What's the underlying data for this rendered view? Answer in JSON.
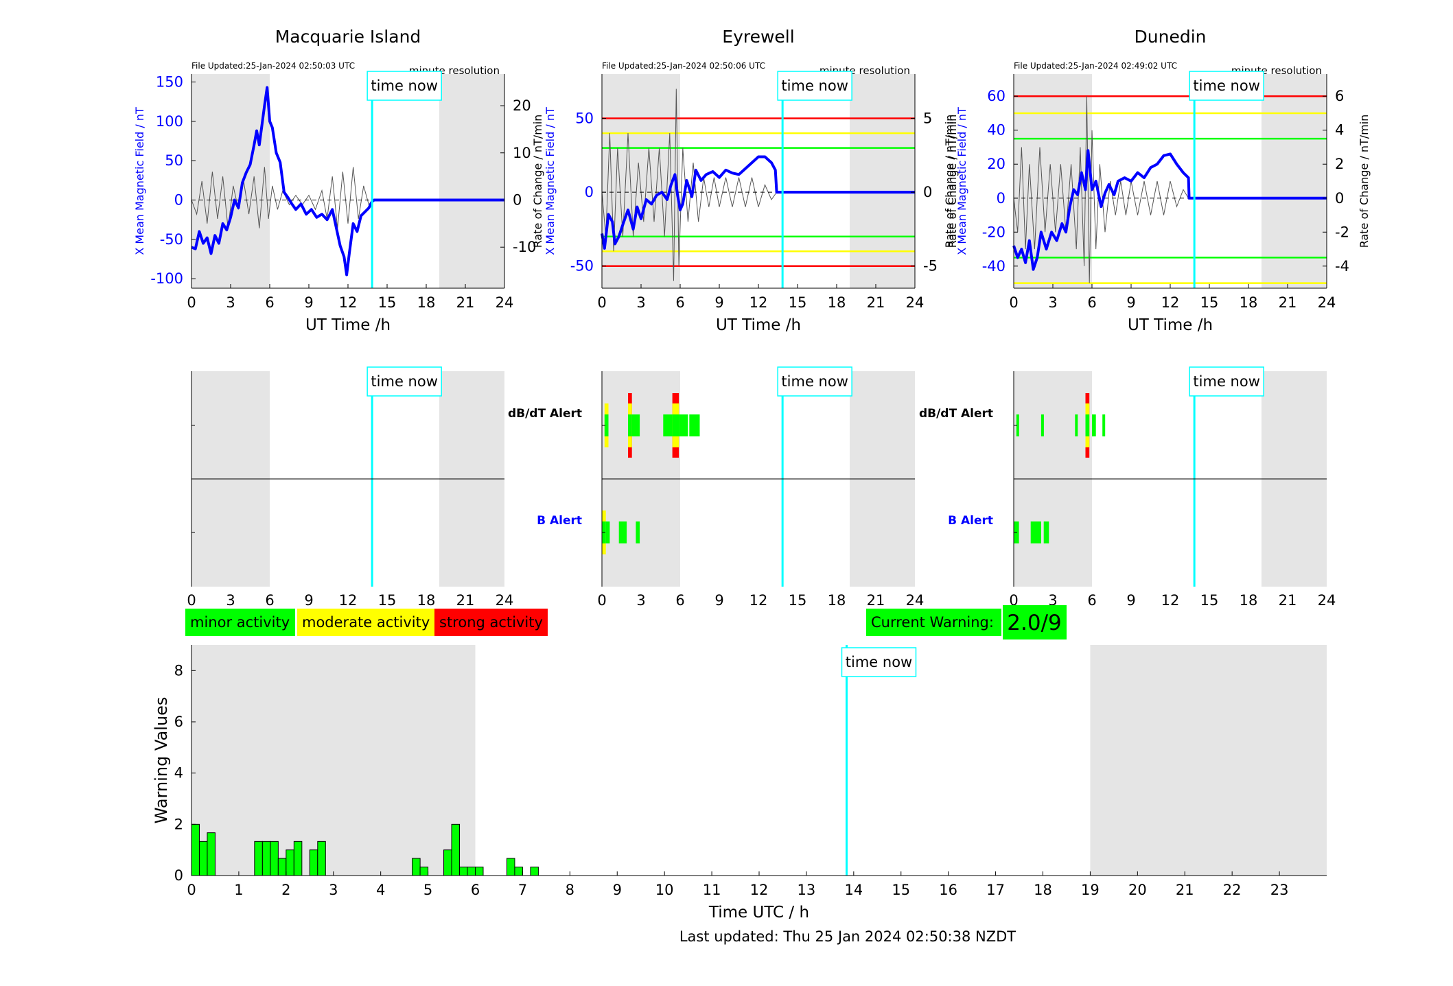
{
  "figure": {
    "last_updated": "Last updated: Thu 25 Jan 2024 02:50:38 NZDT",
    "time_now_label": "time now",
    "current_warning_label": "Current Warning:",
    "current_warning_value": "2.0/9",
    "legend": [
      {
        "label": "minor activity",
        "color": "#00ff00"
      },
      {
        "label": "moderate activity",
        "color": "#ffff00"
      },
      {
        "label": "strong activity",
        "color": "#ff0000"
      }
    ],
    "colors": {
      "x_series": "#0000ff",
      "rate_series": "#555555",
      "time_now": "#00ffff",
      "night_shade": "#e5e5e5",
      "minor": "#00ff00",
      "moderate": "#ffff00",
      "strong": "#ff0000"
    }
  },
  "chart_data": [
    {
      "type": "line",
      "name": "Macquarie Island",
      "title": "Macquarie Island",
      "file_updated": "File Updated:25-Jan-2024 02:50:03 UTC",
      "resolution": "minute resolution",
      "xlabel": "UT Time /h",
      "ylabel": "X Mean Magnetic Field / nT",
      "y2label": "",
      "xlim": [
        0,
        24
      ],
      "ylim": [
        -112,
        160
      ],
      "y2lim": [
        -18.7,
        26.7
      ],
      "xticks": [
        0,
        3,
        6,
        9,
        12,
        15,
        18,
        21,
        24
      ],
      "yticks": [
        -100,
        -50,
        0,
        50,
        100,
        150
      ],
      "y2ticks": [
        -10,
        0,
        10,
        20
      ],
      "night_bands": [
        [
          0,
          6
        ],
        [
          19,
          24
        ]
      ],
      "time_now": 13.85,
      "thresholds": [],
      "x_series": [
        [
          0,
          -60
        ],
        [
          0.3,
          -62
        ],
        [
          0.6,
          -40
        ],
        [
          0.9,
          -55
        ],
        [
          1.2,
          -48
        ],
        [
          1.5,
          -68
        ],
        [
          1.8,
          -45
        ],
        [
          2.1,
          -55
        ],
        [
          2.4,
          -30
        ],
        [
          2.7,
          -38
        ],
        [
          3.0,
          -22
        ],
        [
          3.3,
          0
        ],
        [
          3.6,
          -10
        ],
        [
          3.9,
          22
        ],
        [
          4.2,
          35
        ],
        [
          4.5,
          45
        ],
        [
          4.8,
          70
        ],
        [
          5.0,
          88
        ],
        [
          5.2,
          70
        ],
        [
          5.4,
          95
        ],
        [
          5.6,
          120
        ],
        [
          5.8,
          143
        ],
        [
          6.0,
          100
        ],
        [
          6.2,
          92
        ],
        [
          6.5,
          60
        ],
        [
          6.8,
          48
        ],
        [
          7.1,
          10
        ],
        [
          7.4,
          3
        ],
        [
          7.7,
          -5
        ],
        [
          8.0,
          -12
        ],
        [
          8.4,
          -5
        ],
        [
          8.8,
          -18
        ],
        [
          9.2,
          -12
        ],
        [
          9.6,
          -22
        ],
        [
          10.0,
          -18
        ],
        [
          10.4,
          -25
        ],
        [
          10.8,
          -12
        ],
        [
          11.1,
          -35
        ],
        [
          11.4,
          -58
        ],
        [
          11.7,
          -72
        ],
        [
          11.9,
          -95
        ],
        [
          12.1,
          -68
        ],
        [
          12.4,
          -30
        ],
        [
          12.7,
          -40
        ],
        [
          13.0,
          -20
        ],
        [
          13.3,
          -15
        ],
        [
          13.6,
          -10
        ],
        [
          13.85,
          -2
        ],
        [
          14.0,
          0
        ],
        [
          24,
          0
        ]
      ],
      "rate_series": [
        [
          0,
          0
        ],
        [
          0.4,
          -3
        ],
        [
          0.8,
          4
        ],
        [
          1.2,
          -5
        ],
        [
          1.6,
          6
        ],
        [
          2.0,
          -4
        ],
        [
          2.4,
          5
        ],
        [
          2.8,
          -6
        ],
        [
          3.2,
          3
        ],
        [
          3.6,
          -2
        ],
        [
          4.0,
          4
        ],
        [
          4.4,
          -3
        ],
        [
          4.8,
          5
        ],
        [
          5.2,
          -6
        ],
        [
          5.6,
          7
        ],
        [
          5.9,
          -4
        ],
        [
          6.2,
          3
        ],
        [
          6.6,
          -2
        ],
        [
          7.0,
          2
        ],
        [
          7.5,
          -1
        ],
        [
          8.0,
          1
        ],
        [
          8.5,
          -1
        ],
        [
          9.0,
          1
        ],
        [
          9.5,
          -2
        ],
        [
          10.0,
          2
        ],
        [
          10.4,
          -4
        ],
        [
          10.8,
          5
        ],
        [
          11.2,
          -6
        ],
        [
          11.6,
          6
        ],
        [
          12.0,
          -5
        ],
        [
          12.4,
          7
        ],
        [
          12.8,
          -4
        ],
        [
          13.2,
          3
        ],
        [
          13.6,
          -1
        ],
        [
          13.85,
          0
        ]
      ],
      "alerts": {
        "dbdt": [],
        "b": []
      }
    },
    {
      "type": "line",
      "name": "Eyrewell",
      "title": "Eyrewell",
      "file_updated": "File Updated:25-Jan-2024 02:50:06 UTC",
      "resolution": "minute resolution",
      "xlabel": "UT Time /h",
      "ylabel": "X Mean Magnetic Field / nT",
      "y2label": "Rate of Change / nT/min",
      "xlim": [
        0,
        24
      ],
      "ylim": [
        -65,
        80
      ],
      "y2lim": [
        -6.5,
        8.0
      ],
      "xticks": [
        0,
        3,
        6,
        9,
        12,
        15,
        18,
        21,
        24
      ],
      "yticks": [
        -50,
        0,
        50
      ],
      "y2ticks": [
        -5,
        0,
        5
      ],
      "night_bands": [
        [
          0,
          6
        ],
        [
          19,
          24
        ]
      ],
      "time_now": 13.85,
      "thresholds": [
        [
          50,
          "#ff0000"
        ],
        [
          40,
          "#ffff00"
        ],
        [
          30,
          "#00ff00"
        ],
        [
          -30,
          "#00ff00"
        ],
        [
          -40,
          "#ffff00"
        ],
        [
          -50,
          "#ff0000"
        ]
      ],
      "x_series": [
        [
          0,
          -28
        ],
        [
          0.2,
          -38
        ],
        [
          0.5,
          -15
        ],
        [
          0.8,
          -20
        ],
        [
          1.0,
          -35
        ],
        [
          1.3,
          -30
        ],
        [
          1.6,
          -22
        ],
        [
          2.0,
          -12
        ],
        [
          2.4,
          -25
        ],
        [
          2.7,
          -10
        ],
        [
          3.0,
          -18
        ],
        [
          3.4,
          -5
        ],
        [
          3.8,
          -8
        ],
        [
          4.2,
          -2
        ],
        [
          4.6,
          0
        ],
        [
          5.0,
          -5
        ],
        [
          5.3,
          5
        ],
        [
          5.6,
          12
        ],
        [
          5.8,
          -2
        ],
        [
          6.0,
          -12
        ],
        [
          6.2,
          -8
        ],
        [
          6.5,
          8
        ],
        [
          6.9,
          -3
        ],
        [
          7.2,
          15
        ],
        [
          7.6,
          8
        ],
        [
          8.0,
          12
        ],
        [
          8.5,
          14
        ],
        [
          9.0,
          10
        ],
        [
          9.5,
          15
        ],
        [
          10.0,
          13
        ],
        [
          10.5,
          12
        ],
        [
          11.0,
          16
        ],
        [
          11.5,
          20
        ],
        [
          12.0,
          24
        ],
        [
          12.5,
          24
        ],
        [
          13.0,
          20
        ],
        [
          13.3,
          15
        ],
        [
          13.4,
          0
        ],
        [
          24,
          0
        ]
      ],
      "rate_series": [
        [
          0,
          0
        ],
        [
          0.3,
          -3
        ],
        [
          0.6,
          4
        ],
        [
          0.9,
          -4
        ],
        [
          1.2,
          3
        ],
        [
          1.6,
          -3
        ],
        [
          2.0,
          4
        ],
        [
          2.4,
          -3
        ],
        [
          2.8,
          2
        ],
        [
          3.2,
          -2
        ],
        [
          3.6,
          3
        ],
        [
          4.0,
          -2
        ],
        [
          4.4,
          3
        ],
        [
          4.8,
          -3
        ],
        [
          5.2,
          4
        ],
        [
          5.5,
          -6
        ],
        [
          5.7,
          7
        ],
        [
          5.9,
          -5
        ],
        [
          6.2,
          3
        ],
        [
          6.6,
          -2
        ],
        [
          7.0,
          2
        ],
        [
          7.4,
          -2
        ],
        [
          7.8,
          1
        ],
        [
          8.2,
          -1
        ],
        [
          8.6,
          1
        ],
        [
          9.0,
          -1
        ],
        [
          9.5,
          1
        ],
        [
          10.0,
          -1
        ],
        [
          10.5,
          1
        ],
        [
          11.0,
          -1
        ],
        [
          11.5,
          1
        ],
        [
          12.0,
          -1
        ],
        [
          12.5,
          0.5
        ],
        [
          13.0,
          -0.5
        ],
        [
          13.4,
          0
        ]
      ],
      "alerts": {
        "dbdt": [
          [
            0.2,
            0.5,
            "moderate"
          ],
          [
            2.0,
            2.3,
            "strong"
          ],
          [
            2.3,
            2.9,
            "minor"
          ],
          [
            4.7,
            5.4,
            "minor"
          ],
          [
            5.4,
            5.9,
            "strong"
          ],
          [
            5.9,
            6.6,
            "minor"
          ],
          [
            6.7,
            7.5,
            "minor"
          ]
        ],
        "b": [
          [
            0.0,
            0.3,
            "moderate"
          ],
          [
            0.3,
            0.6,
            "minor"
          ],
          [
            1.3,
            1.9,
            "minor"
          ],
          [
            2.6,
            2.9,
            "minor"
          ]
        ]
      }
    },
    {
      "type": "line",
      "name": "Dunedin",
      "title": "Dunedin",
      "file_updated": "File Updated:25-Jan-2024 02:49:02 UTC",
      "resolution": "minute resolution",
      "xlabel": "UT Time /h",
      "ylabel": "X Mean Magnetic Field / nT",
      "y2label": "Rate of Change / nT/min",
      "xlim": [
        0,
        24
      ],
      "ylim": [
        -53,
        73
      ],
      "y2lim": [
        -5.3,
        7.3
      ],
      "xticks": [
        0,
        3,
        6,
        9,
        12,
        15,
        18,
        21,
        24
      ],
      "yticks": [
        -40,
        -20,
        0,
        20,
        40,
        60
      ],
      "y2ticks": [
        -4,
        -2,
        0,
        2,
        4,
        6
      ],
      "night_bands": [
        [
          0,
          6
        ],
        [
          19,
          24
        ]
      ],
      "time_now": 13.85,
      "thresholds": [
        [
          60,
          "#ff0000"
        ],
        [
          50,
          "#ffff00"
        ],
        [
          35,
          "#00ff00"
        ],
        [
          -35,
          "#00ff00"
        ],
        [
          -50,
          "#ffff00"
        ]
      ],
      "x_series": [
        [
          0,
          -28
        ],
        [
          0.3,
          -35
        ],
        [
          0.6,
          -30
        ],
        [
          0.9,
          -38
        ],
        [
          1.2,
          -25
        ],
        [
          1.5,
          -42
        ],
        [
          1.8,
          -35
        ],
        [
          2.1,
          -20
        ],
        [
          2.5,
          -30
        ],
        [
          2.9,
          -20
        ],
        [
          3.3,
          -25
        ],
        [
          3.7,
          -15
        ],
        [
          4.0,
          -20
        ],
        [
          4.3,
          -5
        ],
        [
          4.6,
          5
        ],
        [
          4.9,
          2
        ],
        [
          5.2,
          15
        ],
        [
          5.5,
          5
        ],
        [
          5.7,
          28
        ],
        [
          6.0,
          5
        ],
        [
          6.3,
          10
        ],
        [
          6.7,
          -5
        ],
        [
          7.0,
          3
        ],
        [
          7.3,
          8
        ],
        [
          7.7,
          2
        ],
        [
          8.0,
          10
        ],
        [
          8.5,
          12
        ],
        [
          9.0,
          10
        ],
        [
          9.5,
          15
        ],
        [
          10.0,
          12
        ],
        [
          10.5,
          18
        ],
        [
          11.0,
          20
        ],
        [
          11.5,
          25
        ],
        [
          12.0,
          26
        ],
        [
          12.5,
          20
        ],
        [
          13.0,
          15
        ],
        [
          13.4,
          12
        ],
        [
          13.45,
          0
        ],
        [
          24,
          0
        ]
      ],
      "rate_series": [
        [
          0,
          0
        ],
        [
          0.3,
          -2
        ],
        [
          0.6,
          3
        ],
        [
          0.9,
          -3
        ],
        [
          1.2,
          2
        ],
        [
          1.6,
          -3
        ],
        [
          2.0,
          3
        ],
        [
          2.4,
          -2
        ],
        [
          2.8,
          2
        ],
        [
          3.2,
          -2
        ],
        [
          3.6,
          2
        ],
        [
          4.0,
          -2
        ],
        [
          4.4,
          2
        ],
        [
          4.8,
          -3
        ],
        [
          5.1,
          3
        ],
        [
          5.4,
          -4
        ],
        [
          5.6,
          6
        ],
        [
          5.8,
          -5
        ],
        [
          6.0,
          4
        ],
        [
          6.3,
          -3
        ],
        [
          6.6,
          2
        ],
        [
          7.0,
          -2
        ],
        [
          7.4,
          1
        ],
        [
          7.8,
          -1
        ],
        [
          8.2,
          1
        ],
        [
          8.6,
          -1
        ],
        [
          9.0,
          1
        ],
        [
          9.5,
          -1
        ],
        [
          10.0,
          1
        ],
        [
          10.5,
          -1
        ],
        [
          11.0,
          1
        ],
        [
          11.5,
          -1
        ],
        [
          12.0,
          1
        ],
        [
          12.5,
          -0.5
        ],
        [
          13.0,
          0.5
        ],
        [
          13.4,
          0
        ]
      ],
      "alerts": {
        "dbdt": [
          [
            0.2,
            0.4,
            "minor"
          ],
          [
            2.1,
            2.3,
            "minor"
          ],
          [
            4.7,
            4.9,
            "minor"
          ],
          [
            5.5,
            5.8,
            "strong"
          ],
          [
            6.0,
            6.3,
            "minor"
          ],
          [
            6.8,
            7.0,
            "minor"
          ]
        ],
        "b": [
          [
            0.0,
            0.4,
            "minor"
          ],
          [
            1.3,
            2.1,
            "minor"
          ],
          [
            2.3,
            2.7,
            "minor"
          ]
        ]
      }
    },
    {
      "type": "bar",
      "name": "warning-values",
      "title": "",
      "xlabel": "Time UTC / h",
      "ylabel": "Warning Values",
      "xlim": [
        0,
        24
      ],
      "ylim": [
        0,
        9
      ],
      "xticks": [
        0,
        1,
        2,
        3,
        4,
        5,
        6,
        7,
        8,
        9,
        10,
        11,
        12,
        13,
        14,
        15,
        16,
        17,
        18,
        19,
        20,
        21,
        22,
        23
      ],
      "yticks": [
        0,
        2,
        4,
        6,
        8
      ],
      "night_bands": [
        [
          0,
          6
        ],
        [
          19,
          24
        ]
      ],
      "time_now": 13.85,
      "bar_width": 0.1667,
      "bars": [
        [
          0.0,
          2.0
        ],
        [
          0.1667,
          1.33
        ],
        [
          0.333,
          1.67
        ],
        [
          1.333,
          1.33
        ],
        [
          1.5,
          1.33
        ],
        [
          1.667,
          1.33
        ],
        [
          1.833,
          0.67
        ],
        [
          2.0,
          1.0
        ],
        [
          2.167,
          1.33
        ],
        [
          2.5,
          1.0
        ],
        [
          2.667,
          1.33
        ],
        [
          4.667,
          0.67
        ],
        [
          4.833,
          0.33
        ],
        [
          5.333,
          1.0
        ],
        [
          5.5,
          2.0
        ],
        [
          5.667,
          0.33
        ],
        [
          5.833,
          0.33
        ],
        [
          6.0,
          0.33
        ],
        [
          6.667,
          0.67
        ],
        [
          6.833,
          0.33
        ],
        [
          7.167,
          0.33
        ]
      ]
    }
  ]
}
